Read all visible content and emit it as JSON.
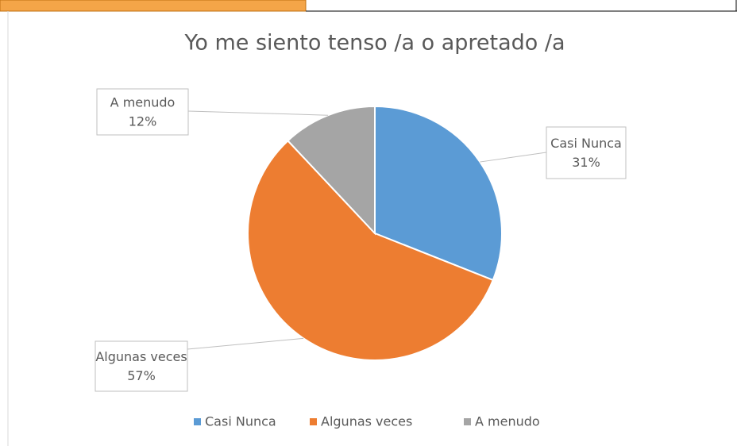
{
  "chart_data": {
    "type": "pie",
    "title": "Yo me siento tenso /a o apretado /a",
    "categories": [
      "Casi Nunca",
      "Algunas veces",
      "A menudo"
    ],
    "values": [
      31,
      57,
      12
    ],
    "value_labels": [
      "31%",
      "57%",
      "12%"
    ],
    "colors": [
      "#5b9bd5",
      "#ed7d31",
      "#a5a5a5"
    ],
    "legend": "bottom"
  }
}
